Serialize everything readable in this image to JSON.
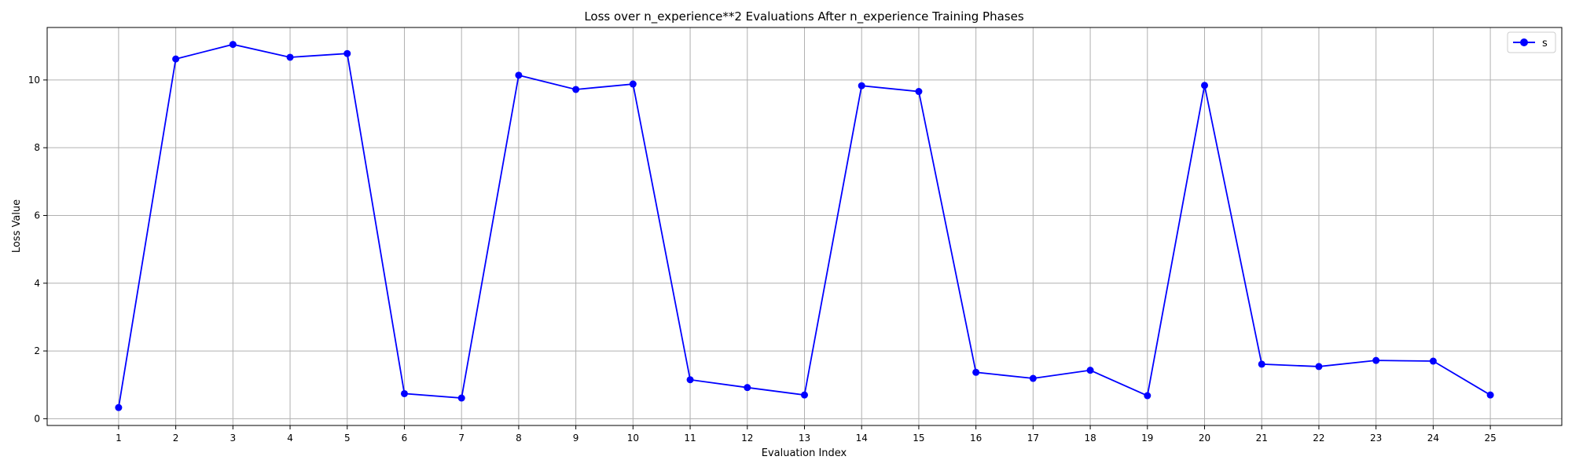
{
  "chart_data": {
    "type": "line",
    "title": "Loss over n_experience**2 Evaluations After n_experience Training Phases",
    "xlabel": "Evaluation Index",
    "ylabel": "Loss Value",
    "x": [
      1,
      2,
      3,
      4,
      5,
      6,
      7,
      8,
      9,
      10,
      11,
      12,
      13,
      14,
      15,
      16,
      17,
      18,
      19,
      20,
      21,
      22,
      23,
      24,
      25
    ],
    "xlim": [
      -0.25,
      26.25
    ],
    "ylim": [
      -0.2,
      11.55
    ],
    "yticks": [
      0,
      2,
      4,
      6,
      8,
      10
    ],
    "grid": true,
    "legend_position": "top-right",
    "series": [
      {
        "name": "s",
        "color": "#0000ff",
        "marker": "circle",
        "values": [
          0.33,
          10.62,
          11.05,
          10.67,
          10.78,
          0.74,
          0.61,
          10.14,
          9.72,
          9.88,
          1.15,
          0.92,
          0.7,
          9.83,
          9.66,
          1.37,
          1.19,
          1.43,
          0.68,
          9.84,
          1.61,
          1.54,
          1.72,
          1.7,
          0.7
        ]
      }
    ]
  }
}
